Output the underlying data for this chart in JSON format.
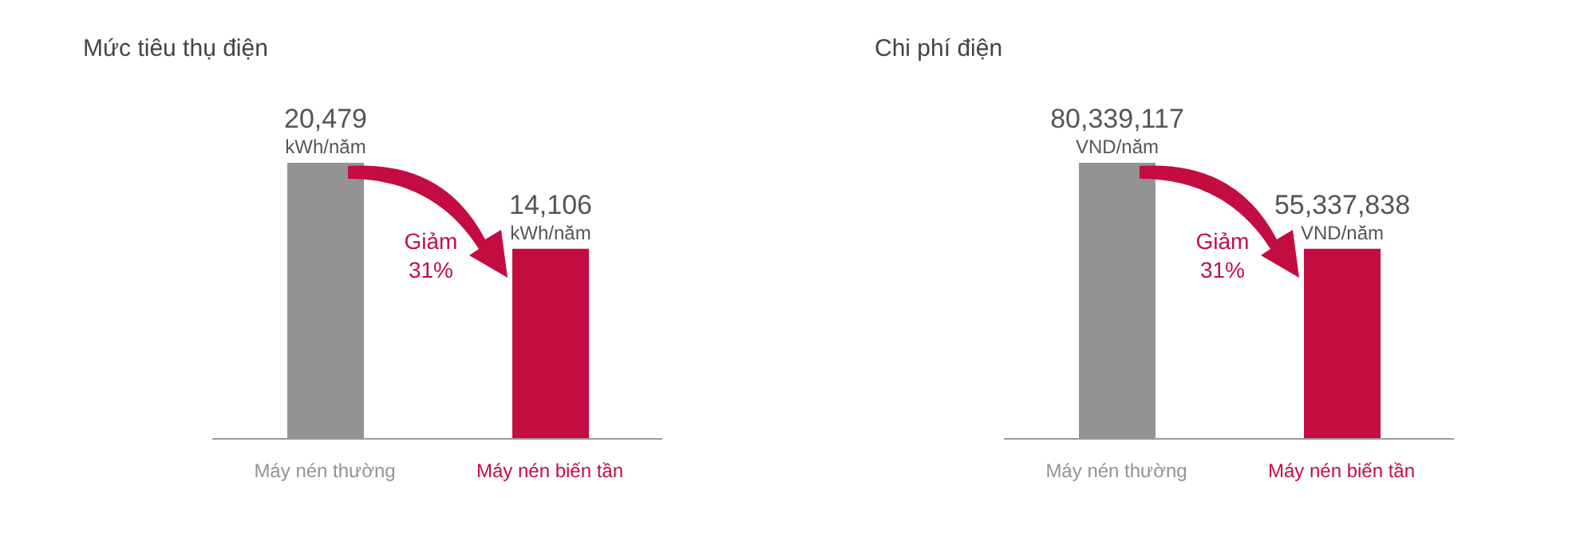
{
  "chart_data": [
    {
      "type": "bar",
      "title": "Mức tiêu thụ điện",
      "categories": [
        "Máy nén thường",
        "Máy nén biến tần"
      ],
      "values": [
        20479,
        14106
      ],
      "colors": [
        "#939393",
        "#c30d42"
      ],
      "value_labels": [
        "20,479 kWh/năm",
        "14,106 kWh/năm"
      ],
      "annotations": [
        "Giảm 31%"
      ],
      "tick_labels": "x"
    },
    {
      "type": "bar",
      "title": "Chi phí điện",
      "categories": [
        "Máy nén thường",
        "Máy nén biến tần"
      ],
      "values": [
        80339117,
        55337838
      ],
      "colors": [
        "#939393",
        "#c30d42"
      ],
      "value_labels": [
        "80,339,117 VND/năm",
        "55,337,838 VND/năm"
      ],
      "annotations": [
        "Giảm 31%"
      ],
      "tick_labels": "x"
    }
  ]
}
